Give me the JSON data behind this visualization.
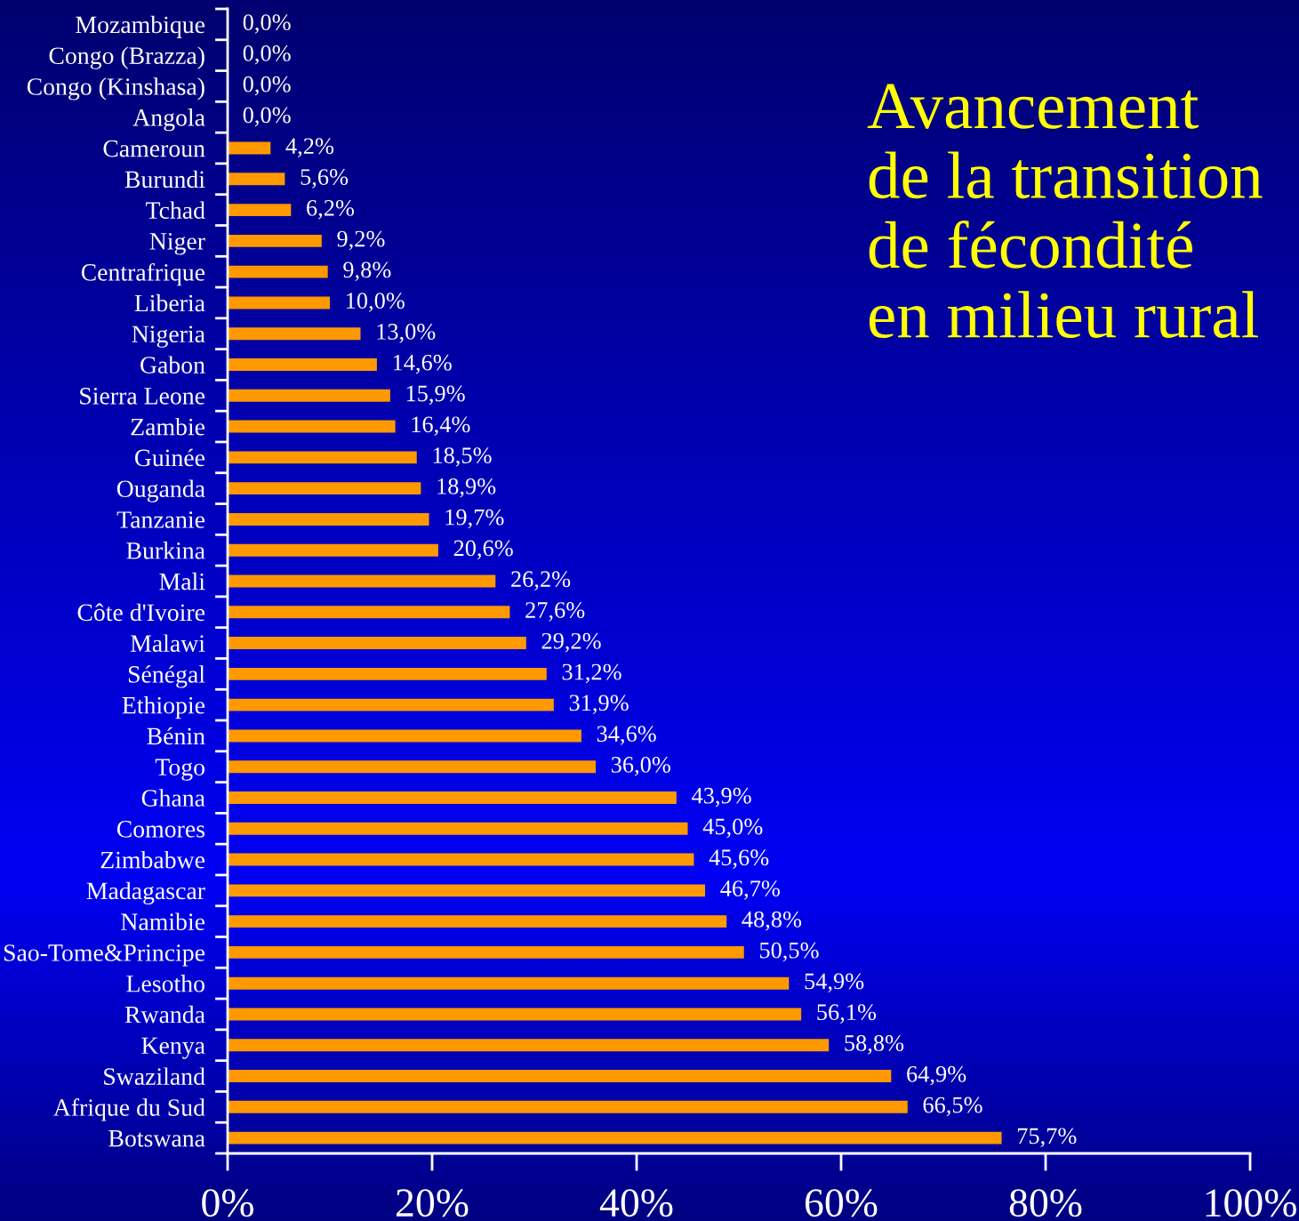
{
  "chart_data": {
    "type": "bar",
    "orientation": "horizontal",
    "title": "Avancement\nde la transition\nde fécondité\nen milieu rural",
    "categories": [
      "Mozambique",
      "Congo (Brazza)",
      "Congo (Kinshasa)",
      "Angola",
      "Cameroun",
      "Burundi",
      "Tchad",
      "Niger",
      "Centrafrique",
      "Liberia",
      "Nigeria",
      "Gabon",
      "Sierra Leone",
      "Zambie",
      "Guinée",
      "Ouganda",
      "Tanzanie",
      "Burkina",
      "Mali",
      "Côte d'Ivoire",
      "Malawi",
      "Sénégal",
      "Ethiopie",
      "Bénin",
      "Togo",
      "Ghana",
      "Comores",
      "Zimbabwe",
      "Madagascar",
      "Namibie",
      "Sao-Tome&Principe",
      "Lesotho",
      "Rwanda",
      "Kenya",
      "Swaziland",
      "Afrique du Sud",
      "Botswana"
    ],
    "values": [
      0.0,
      0.0,
      0.0,
      0.0,
      4.2,
      5.6,
      6.2,
      9.2,
      9.8,
      10.0,
      13.0,
      14.6,
      15.9,
      16.4,
      18.5,
      18.9,
      19.7,
      20.6,
      26.2,
      27.6,
      29.2,
      31.2,
      31.9,
      34.6,
      36.0,
      43.9,
      45.0,
      45.6,
      46.7,
      48.8,
      50.5,
      54.9,
      56.1,
      58.8,
      64.9,
      66.5,
      75.7
    ],
    "value_labels": [
      "0,0%",
      "0,0%",
      "0,0%",
      "0,0%",
      "4,2%",
      "5,6%",
      "6,2%",
      "9,2%",
      "9,8%",
      "10,0%",
      "13,0%",
      "14,6%",
      "15,9%",
      "16,4%",
      "18,5%",
      "18,9%",
      "19,7%",
      "20,6%",
      "26,2%",
      "27,6%",
      "29,2%",
      "31,2%",
      "31,9%",
      "34,6%",
      "36,0%",
      "43,9%",
      "45,0%",
      "45,6%",
      "46,7%",
      "48,8%",
      "50,5%",
      "54,9%",
      "56,1%",
      "58,8%",
      "64,9%",
      "66,5%",
      "75,7%"
    ],
    "color": "#ff9900",
    "xlim": [
      0,
      100
    ],
    "xticks": [
      {
        "value": 0,
        "label": "0%"
      },
      {
        "value": 20,
        "label": "20%"
      },
      {
        "value": 40,
        "label": "40%"
      },
      {
        "value": 60,
        "label": "60%"
      },
      {
        "value": 80,
        "label": "80%"
      },
      {
        "value": 100,
        "label": "100%"
      }
    ]
  }
}
